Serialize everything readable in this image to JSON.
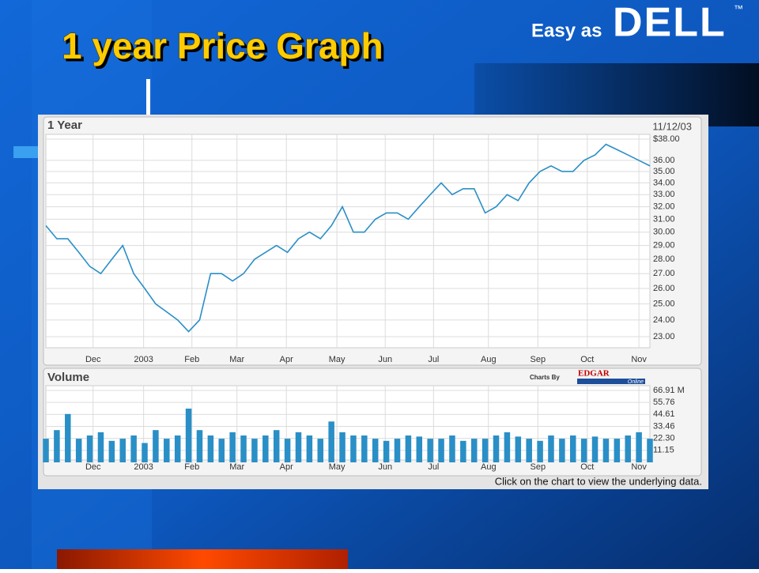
{
  "slide_title": "1 year Price Graph",
  "logo": {
    "tagline": "Easy as",
    "brand": "DELL",
    "tm": "™"
  },
  "footer_note": "Click on the chart to view the underlying data.",
  "credit": {
    "prefix": "Charts By",
    "brand": "EDGAR",
    "suffix": "Online"
  },
  "chart_data": [
    {
      "type": "line",
      "title": "1 Year",
      "date_label": "11/12/03",
      "color": "#2a8fc6",
      "log_scale": true,
      "grid": true,
      "values": [
        30.5,
        29.5,
        29.5,
        28.5,
        27.5,
        27,
        28,
        29,
        27,
        26,
        25,
        24.5,
        24,
        23.3,
        24,
        27,
        27,
        26.5,
        27,
        28,
        28.5,
        29,
        28.5,
        29.5,
        30,
        29.5,
        30.5,
        32,
        30,
        30,
        31,
        31.5,
        31.5,
        31,
        32,
        33,
        34,
        33,
        33.5,
        33.5,
        31.5,
        32,
        33,
        32.5,
        34,
        35,
        35.5,
        35,
        35,
        36,
        36.5,
        37.5,
        37,
        36.5,
        36,
        35.5
      ],
      "xlim": [
        0,
        55
      ],
      "xticks": [
        {
          "value": 4.3,
          "label": "Dec"
        },
        {
          "value": 8.9,
          "label": "2003"
        },
        {
          "value": 13.3,
          "label": "Feb"
        },
        {
          "value": 17.4,
          "label": "Mar"
        },
        {
          "value": 21.9,
          "label": "Apr"
        },
        {
          "value": 26.5,
          "label": "May"
        },
        {
          "value": 30.9,
          "label": "Jun"
        },
        {
          "value": 35.3,
          "label": "Jul"
        },
        {
          "value": 40.3,
          "label": "Aug"
        },
        {
          "value": 44.8,
          "label": "Sep"
        },
        {
          "value": 49.3,
          "label": "Oct"
        },
        {
          "value": 54,
          "label": "Nov"
        }
      ],
      "ylim": [
        22.5,
        38
      ],
      "yticks": [
        {
          "value": 23,
          "label": "23.00"
        },
        {
          "value": 24,
          "label": "24.00"
        },
        {
          "value": 25,
          "label": "25.00"
        },
        {
          "value": 26,
          "label": "26.00"
        },
        {
          "value": 27,
          "label": "27.00"
        },
        {
          "value": 28,
          "label": "28.00"
        },
        {
          "value": 29,
          "label": "29.00"
        },
        {
          "value": 30,
          "label": "30.00"
        },
        {
          "value": 31,
          "label": "31.00"
        },
        {
          "value": 32,
          "label": "32.00"
        },
        {
          "value": 33,
          "label": "33.00"
        },
        {
          "value": 34,
          "label": "34.00"
        },
        {
          "value": 35,
          "label": "35.00"
        },
        {
          "value": 36,
          "label": "36.00"
        },
        {
          "value": 38,
          "label": "$38.00"
        }
      ]
    },
    {
      "type": "bar",
      "title": "Volume",
      "color": "#2a8fc6",
      "grid": true,
      "values": [
        22,
        30,
        45,
        22,
        25,
        28,
        20,
        22,
        25,
        18,
        30,
        22,
        25,
        50,
        30,
        25,
        22,
        28,
        25,
        22,
        25,
        30,
        22,
        28,
        25,
        22,
        38,
        28,
        25,
        25,
        22,
        20,
        22,
        25,
        24,
        22,
        22,
        25,
        20,
        22,
        22,
        25,
        28,
        24,
        22,
        20,
        25,
        22,
        25,
        22,
        24,
        22,
        22,
        25,
        28,
        22
      ],
      "xlim": [
        0,
        55
      ],
      "xticks": [
        {
          "value": 4.3,
          "label": "Dec"
        },
        {
          "value": 8.9,
          "label": "2003"
        },
        {
          "value": 13.3,
          "label": "Feb"
        },
        {
          "value": 17.4,
          "label": "Mar"
        },
        {
          "value": 21.9,
          "label": "Apr"
        },
        {
          "value": 26.5,
          "label": "May"
        },
        {
          "value": 30.9,
          "label": "Jun"
        },
        {
          "value": 35.3,
          "label": "Jul"
        },
        {
          "value": 40.3,
          "label": "Aug"
        },
        {
          "value": 44.8,
          "label": "Sep"
        },
        {
          "value": 49.3,
          "label": "Oct"
        },
        {
          "value": 54,
          "label": "Nov"
        }
      ],
      "ylim": [
        0,
        66.91
      ],
      "yticks": [
        {
          "value": 11.15,
          "label": "11.15"
        },
        {
          "value": 22.3,
          "label": "22.30"
        },
        {
          "value": 33.46,
          "label": "33.46"
        },
        {
          "value": 44.61,
          "label": "44.61"
        },
        {
          "value": 55.76,
          "label": "55.76"
        },
        {
          "value": 66.91,
          "label": "66.91 M"
        }
      ]
    }
  ]
}
